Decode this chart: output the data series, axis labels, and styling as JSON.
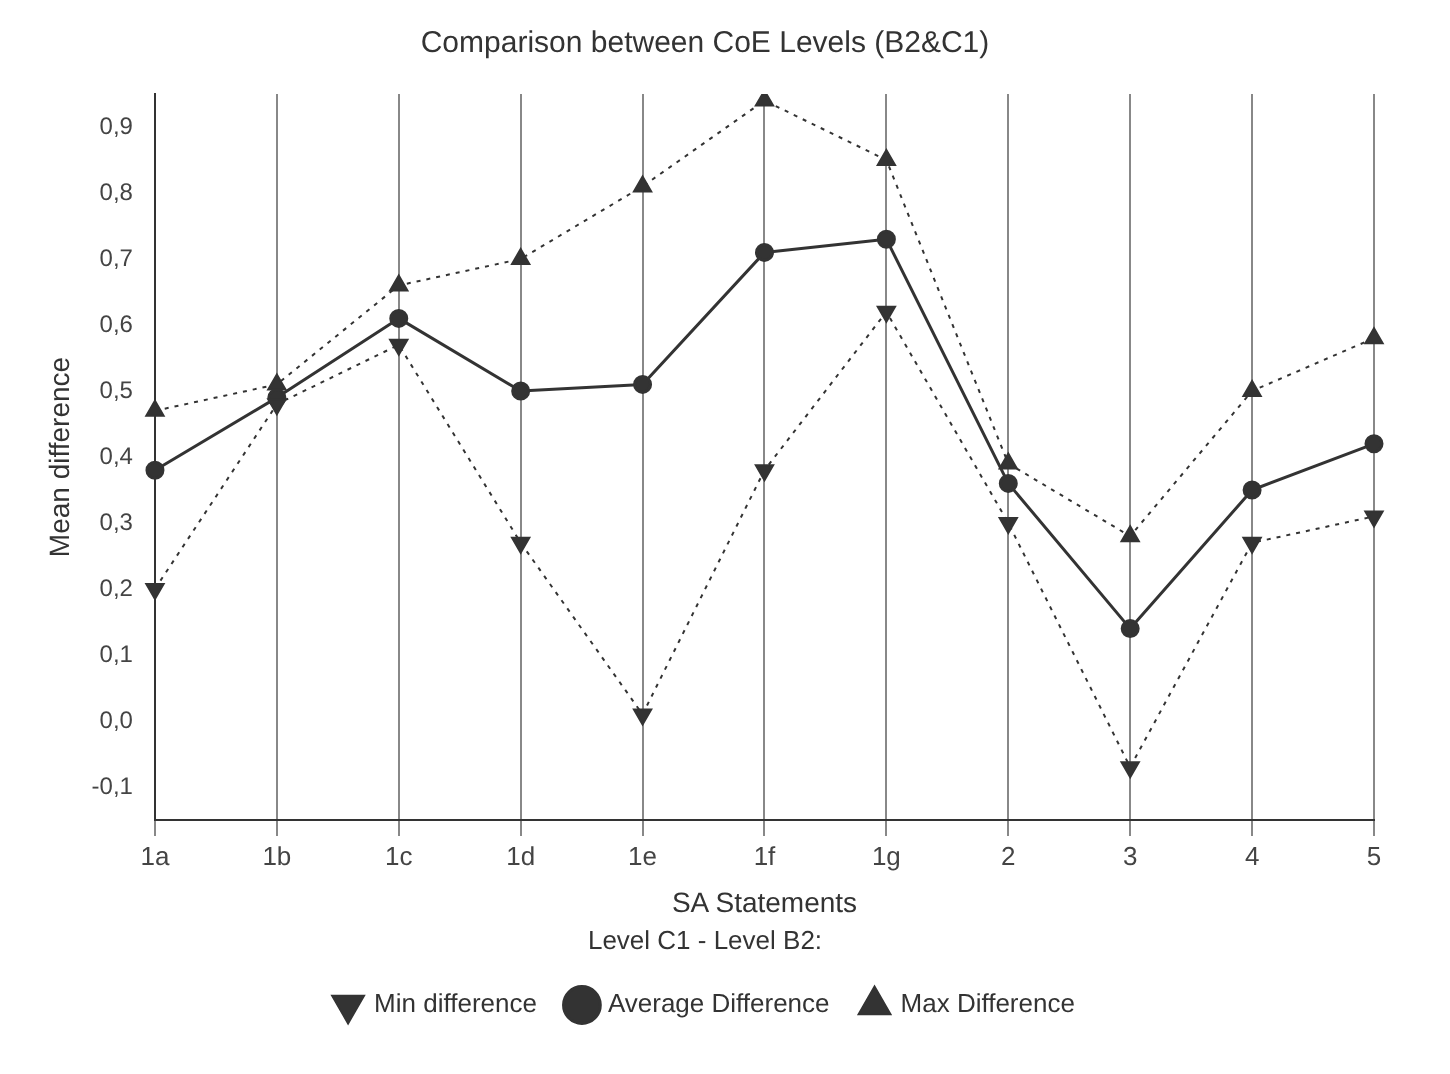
{
  "chart_data": {
    "type": "line",
    "title": "Comparison between CoE Levels (B2&C1)",
    "xlabel": "SA Statements",
    "ylabel": "Mean difference",
    "legend_title": "Level C1 - Level B2:",
    "categories": [
      "1a",
      "1b",
      "1c",
      "1d",
      "1e",
      "1f",
      "1g",
      "2",
      "3",
      "4",
      "5"
    ],
    "series": [
      {
        "name": "Average Difference",
        "color": "#333333",
        "marker": "circle",
        "line_style": "solid",
        "values": [
          0.38,
          0.49,
          0.61,
          0.5,
          0.51,
          0.71,
          0.73,
          0.36,
          0.14,
          0.35,
          0.42
        ]
      },
      {
        "name": "Min difference",
        "color": "#333333",
        "marker": "triangle-down",
        "line_style": "dotted",
        "values": [
          0.2,
          0.48,
          0.57,
          0.27,
          0.01,
          0.38,
          0.62,
          0.3,
          -0.07,
          0.27,
          0.31
        ]
      },
      {
        "name": "Max Difference",
        "color": "#333333",
        "marker": "triangle",
        "line_style": "dotted",
        "values": [
          0.47,
          0.51,
          0.66,
          0.7,
          0.81,
          0.94,
          0.85,
          0.39,
          0.28,
          0.5,
          0.58
        ]
      }
    ],
    "ylim": [
      -0.15,
      0.95
    ],
    "yticks": [
      {
        "value": -0.1,
        "label": "-0,1"
      },
      {
        "value": 0,
        "label": "0,0"
      },
      {
        "value": 0.1,
        "label": "0,1"
      },
      {
        "value": 0.2,
        "label": "0,2"
      },
      {
        "value": 0.3,
        "label": "0,3"
      },
      {
        "value": 0.4,
        "label": "0,4"
      },
      {
        "value": 0.5,
        "label": "0,5"
      },
      {
        "value": 0.6,
        "label": "0,6"
      },
      {
        "value": 0.7,
        "label": "0,7"
      },
      {
        "value": 0.8,
        "label": "0,8"
      },
      {
        "value": 0.9,
        "label": "0,9"
      }
    ],
    "grid": "x",
    "legend": "bottom"
  }
}
